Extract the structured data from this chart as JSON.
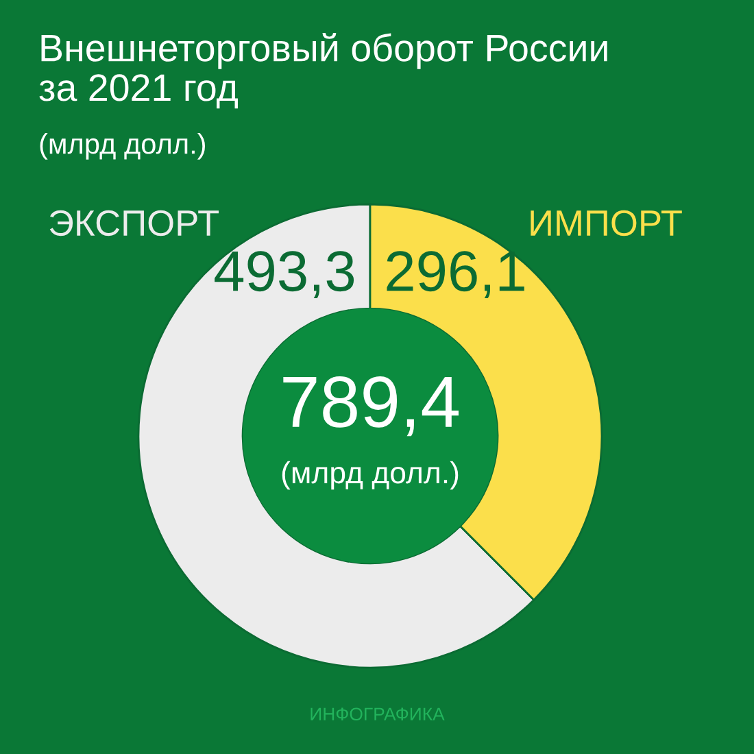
{
  "chart_data": {
    "type": "donut",
    "title": "Внешнеторговый оборот России\nза 2021 год",
    "subtitle": "(млрд долл.)",
    "categories": [
      "ЭКСПОРТ",
      "ИМПОРТ"
    ],
    "values": [
      493.3,
      296.1
    ],
    "colors": [
      "#ececec",
      "#fbdf4b"
    ],
    "value_labels": [
      "493,3",
      "296,1"
    ],
    "annotations": [
      "789,4",
      "(млрд долл.)",
      "ИНФОГРАФИКА"
    ]
  }
}
